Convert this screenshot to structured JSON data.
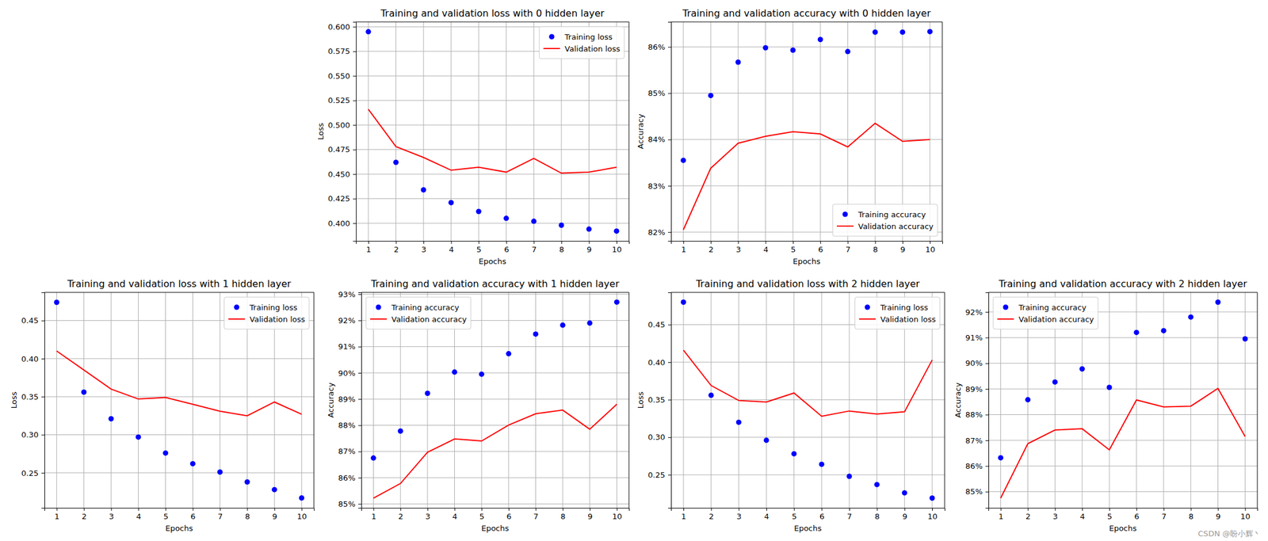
{
  "chart_data": [
    {
      "type": "line",
      "title": "Training and validation loss with 0 hidden layer",
      "x_label": "Epochs",
      "y_label": "Loss",
      "x": [
        1,
        2,
        3,
        4,
        5,
        6,
        7,
        8,
        9,
        10
      ],
      "xlim": [
        0.55,
        10.45
      ],
      "xticks": [
        1,
        2,
        3,
        4,
        5,
        6,
        7,
        8,
        9,
        10
      ],
      "ylim": [
        0.382,
        0.605
      ],
      "yticks": [
        {
          "value": 0.4,
          "label": "0.400"
        },
        {
          "value": 0.425,
          "label": "0.425"
        },
        {
          "value": 0.45,
          "label": "0.450"
        },
        {
          "value": 0.475,
          "label": "0.475"
        },
        {
          "value": 0.5,
          "label": "0.500"
        },
        {
          "value": 0.525,
          "label": "0.525"
        },
        {
          "value": 0.55,
          "label": "0.550"
        },
        {
          "value": 0.575,
          "label": "0.575"
        },
        {
          "value": 0.6,
          "label": "0.600"
        }
      ],
      "grid": true,
      "legend": "upper right",
      "series": [
        {
          "name": "Training loss",
          "type": "scatter",
          "marker": "circle",
          "color": "blue",
          "values": [
            0.595,
            0.462,
            0.434,
            0.421,
            0.412,
            0.405,
            0.402,
            0.398,
            0.394,
            0.392
          ]
        },
        {
          "name": "Validation loss",
          "type": "line",
          "line_style": "solid",
          "color": "red",
          "values": [
            0.516,
            0.478,
            0.467,
            0.454,
            0.457,
            0.452,
            0.466,
            0.451,
            0.452,
            0.457
          ]
        }
      ]
    },
    {
      "type": "line",
      "title": "Training and validation accuracy with 0 hidden layer",
      "x_label": "Epochs",
      "y_label": "Accuracy",
      "x": [
        1,
        2,
        3,
        4,
        5,
        6,
        7,
        8,
        9,
        10
      ],
      "xlim": [
        0.55,
        10.45
      ],
      "xticks": [
        1,
        2,
        3,
        4,
        5,
        6,
        7,
        8,
        9,
        10
      ],
      "ylim": [
        81.81,
        86.54
      ],
      "yticks": [
        {
          "value": 82,
          "label": "82%"
        },
        {
          "value": 83,
          "label": "83%"
        },
        {
          "value": 84,
          "label": "84%"
        },
        {
          "value": 85,
          "label": "85%"
        },
        {
          "value": 86,
          "label": "86%"
        }
      ],
      "grid": true,
      "legend": "lower right",
      "series": [
        {
          "name": "Training accuracy",
          "type": "scatter",
          "marker": "circle",
          "color": "blue",
          "values": [
            83.55,
            84.95,
            85.67,
            85.98,
            85.93,
            86.16,
            85.9,
            86.32,
            86.32,
            86.33
          ]
        },
        {
          "name": "Validation accuracy",
          "type": "line",
          "line_style": "solid",
          "color": "red",
          "values": [
            82.05,
            83.38,
            83.92,
            84.07,
            84.17,
            84.12,
            83.84,
            84.35,
            83.96,
            84.0
          ]
        }
      ]
    },
    {
      "type": "line",
      "title": "Training and validation loss with 1 hidden layer",
      "x_label": "Epochs",
      "y_label": "Loss",
      "x": [
        1,
        2,
        3,
        4,
        5,
        6,
        7,
        8,
        9,
        10
      ],
      "xlim": [
        0.55,
        10.45
      ],
      "xticks": [
        1,
        2,
        3,
        4,
        5,
        6,
        7,
        8,
        9,
        10
      ],
      "ylim": [
        0.204,
        0.487
      ],
      "yticks": [
        {
          "value": 0.25,
          "label": "0.25"
        },
        {
          "value": 0.3,
          "label": "0.30"
        },
        {
          "value": 0.35,
          "label": "0.35"
        },
        {
          "value": 0.4,
          "label": "0.40"
        },
        {
          "value": 0.45,
          "label": "0.45"
        }
      ],
      "grid": true,
      "legend": "upper right",
      "series": [
        {
          "name": "Training loss",
          "type": "scatter",
          "marker": "circle",
          "color": "blue",
          "values": [
            0.474,
            0.356,
            0.321,
            0.297,
            0.276,
            0.262,
            0.251,
            0.238,
            0.228,
            0.217
          ]
        },
        {
          "name": "Validation loss",
          "type": "line",
          "line_style": "solid",
          "color": "red",
          "values": [
            0.41,
            0.385,
            0.36,
            0.347,
            0.349,
            0.34,
            0.331,
            0.325,
            0.343,
            0.327
          ]
        }
      ]
    },
    {
      "type": "line",
      "title": "Training and validation accuracy with 1 hidden layer",
      "x_label": "Epochs",
      "y_label": "Accuracy",
      "x": [
        1,
        2,
        3,
        4,
        5,
        6,
        7,
        8,
        9,
        10
      ],
      "xlim": [
        0.55,
        10.45
      ],
      "xticks": [
        1,
        2,
        3,
        4,
        5,
        6,
        7,
        8,
        9,
        10
      ],
      "ylim": [
        84.85,
        93.07
      ],
      "yticks": [
        {
          "value": 85,
          "label": "85%"
        },
        {
          "value": 86,
          "label": "86%"
        },
        {
          "value": 87,
          "label": "87%"
        },
        {
          "value": 88,
          "label": "88%"
        },
        {
          "value": 89,
          "label": "89%"
        },
        {
          "value": 90,
          "label": "90%"
        },
        {
          "value": 91,
          "label": "91%"
        },
        {
          "value": 92,
          "label": "92%"
        },
        {
          "value": 93,
          "label": "93%"
        }
      ],
      "grid": true,
      "legend": "upper left",
      "series": [
        {
          "name": "Training accuracy",
          "type": "scatter",
          "marker": "circle",
          "color": "blue",
          "values": [
            86.75,
            87.78,
            89.22,
            90.03,
            89.95,
            90.73,
            91.48,
            91.82,
            91.9,
            92.7
          ]
        },
        {
          "name": "Validation accuracy",
          "type": "line",
          "line_style": "solid",
          "color": "red",
          "values": [
            85.22,
            85.78,
            86.97,
            87.48,
            87.4,
            88.01,
            88.44,
            88.58,
            87.85,
            88.8
          ]
        }
      ]
    },
    {
      "type": "line",
      "title": "Training and validation loss with 2 hidden layer",
      "x_label": "Epochs",
      "y_label": "Loss",
      "x": [
        1,
        2,
        3,
        4,
        5,
        6,
        7,
        8,
        9,
        10
      ],
      "xlim": [
        0.55,
        10.45
      ],
      "xticks": [
        1,
        2,
        3,
        4,
        5,
        6,
        7,
        8,
        9,
        10
      ],
      "ylim": [
        0.206,
        0.493
      ],
      "yticks": [
        {
          "value": 0.25,
          "label": "0.25"
        },
        {
          "value": 0.3,
          "label": "0.30"
        },
        {
          "value": 0.35,
          "label": "0.35"
        },
        {
          "value": 0.4,
          "label": "0.40"
        },
        {
          "value": 0.45,
          "label": "0.45"
        }
      ],
      "grid": true,
      "legend": "upper right",
      "series": [
        {
          "name": "Training loss",
          "type": "scatter",
          "marker": "circle",
          "color": "blue",
          "values": [
            0.48,
            0.356,
            0.32,
            0.296,
            0.278,
            0.264,
            0.248,
            0.237,
            0.226,
            0.219
          ]
        },
        {
          "name": "Validation loss",
          "type": "line",
          "line_style": "solid",
          "color": "red",
          "values": [
            0.416,
            0.369,
            0.349,
            0.347,
            0.359,
            0.328,
            0.335,
            0.331,
            0.334,
            0.403
          ]
        }
      ]
    },
    {
      "type": "line",
      "title": "Training and validation accuracy with 2 hidden layer",
      "x_label": "Epochs",
      "y_label": "Accuracy",
      "x": [
        1,
        2,
        3,
        4,
        5,
        6,
        7,
        8,
        9,
        10
      ],
      "xlim": [
        0.55,
        10.45
      ],
      "xticks": [
        1,
        2,
        3,
        4,
        5,
        6,
        7,
        8,
        9,
        10
      ],
      "ylim": [
        84.37,
        92.76
      ],
      "yticks": [
        {
          "value": 85,
          "label": "85%"
        },
        {
          "value": 86,
          "label": "86%"
        },
        {
          "value": 87,
          "label": "87%"
        },
        {
          "value": 88,
          "label": "88%"
        },
        {
          "value": 89,
          "label": "89%"
        },
        {
          "value": 90,
          "label": "90%"
        },
        {
          "value": 91,
          "label": "91%"
        },
        {
          "value": 92,
          "label": "92%"
        }
      ],
      "grid": true,
      "legend": "upper left",
      "annotation": "CSDN @盼小辉丶",
      "series": [
        {
          "name": "Training accuracy",
          "type": "scatter",
          "marker": "circle",
          "color": "blue",
          "values": [
            86.32,
            88.58,
            89.27,
            89.78,
            89.06,
            91.2,
            91.27,
            91.8,
            92.38,
            90.95
          ]
        },
        {
          "name": "Validation accuracy",
          "type": "line",
          "line_style": "solid",
          "color": "red",
          "values": [
            84.75,
            86.87,
            87.4,
            87.45,
            86.63,
            88.57,
            88.3,
            88.33,
            89.02,
            87.15
          ]
        }
      ]
    }
  ]
}
